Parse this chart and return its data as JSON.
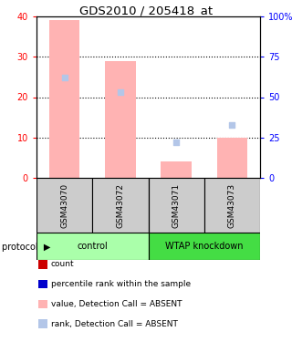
{
  "title": "GDS2010 / 205418_at",
  "samples": [
    "GSM43070",
    "GSM43072",
    "GSM43071",
    "GSM43073"
  ],
  "bar_values_absent": [
    39,
    29,
    4,
    10
  ],
  "rank_values_absent": [
    62,
    53,
    22,
    33
  ],
  "left_ylim": [
    0,
    40
  ],
  "right_ylim": [
    0,
    100
  ],
  "left_yticks": [
    0,
    10,
    20,
    30,
    40
  ],
  "right_yticks": [
    0,
    25,
    50,
    75,
    100
  ],
  "right_yticklabels": [
    "0",
    "25",
    "50",
    "75",
    "100%"
  ],
  "bar_color_absent": "#ffb3b3",
  "rank_color_absent": "#b3c6e8",
  "group_colors": {
    "control": "#aaffaa",
    "WTAP knockdown": "#44dd44"
  },
  "sample_bg_color": "#cccccc",
  "legend_items": [
    {
      "label": "count",
      "color": "#cc0000"
    },
    {
      "label": "percentile rank within the sample",
      "color": "#0000cc"
    },
    {
      "label": "value, Detection Call = ABSENT",
      "color": "#ffb3b3"
    },
    {
      "label": "rank, Detection Call = ABSENT",
      "color": "#b3c6e8"
    }
  ]
}
